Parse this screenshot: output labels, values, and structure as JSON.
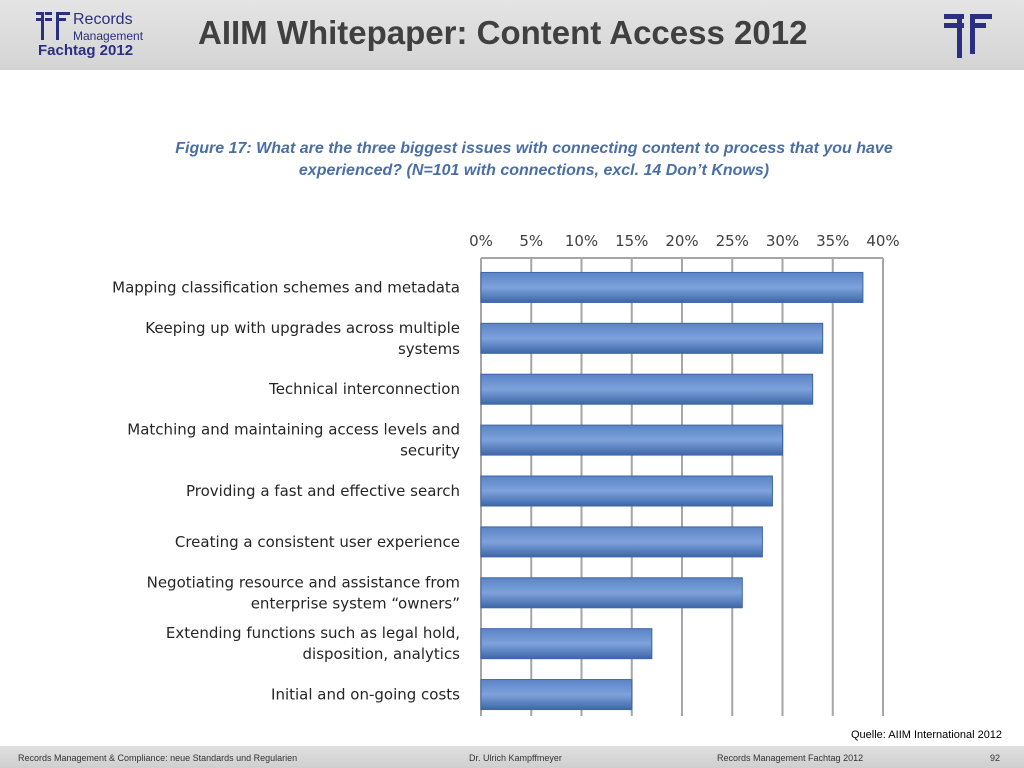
{
  "header": {
    "logo_line1": "Records",
    "logo_line2": "Management",
    "logo_line3": "Fachtag 2012",
    "title": "AIIM Whitepaper: Content Access 2012"
  },
  "colors": {
    "brand": "#2b2f7f",
    "bar": "#5b84c6",
    "bar_dark": "#3e66a8",
    "title_text": "#4a6fa5",
    "gridline": "#a6a6a6"
  },
  "chart_data": {
    "type": "bar",
    "orientation": "horizontal",
    "title": "Figure 17: What are the three biggest issues with connecting content to process that you have experienced? (N=101 with connections, excl. 14 Don’t Knows)",
    "title_line1": "Figure 17: What are the three biggest issues with connecting content to process that you have",
    "title_line2": "experienced? (N=101 with connections, excl. 14 Don’t Knows)",
    "categories": [
      [
        "Mapping classification schemes and metadata"
      ],
      [
        "Keeping up with upgrades across multiple",
        "systems"
      ],
      [
        "Technical interconnection"
      ],
      [
        "Matching and maintaining access levels and",
        "security"
      ],
      [
        "Providing a fast and effective search"
      ],
      [
        "Creating a consistent user experience"
      ],
      [
        "Negotiating resource and assistance from",
        "enterprise system “owners”"
      ],
      [
        "Extending functions such as legal hold,",
        "disposition, analytics"
      ],
      [
        "Initial and on-going costs"
      ]
    ],
    "values": [
      38,
      34,
      33,
      30,
      29,
      28,
      26,
      17,
      15
    ],
    "xlim": [
      0,
      40
    ],
    "ticks": [
      "0%",
      "5%",
      "10%",
      "15%",
      "20%",
      "25%",
      "30%",
      "35%",
      "40%"
    ],
    "axis_position": "top",
    "grid": true
  },
  "source_note": "Quelle: AIIM International 2012",
  "footer": {
    "left": "Records Management & Compliance: neue Standards und Regularien",
    "center": "Dr. Ulrich Kampffmeyer",
    "right": "Records Management Fachtag 2012",
    "page": "92"
  }
}
